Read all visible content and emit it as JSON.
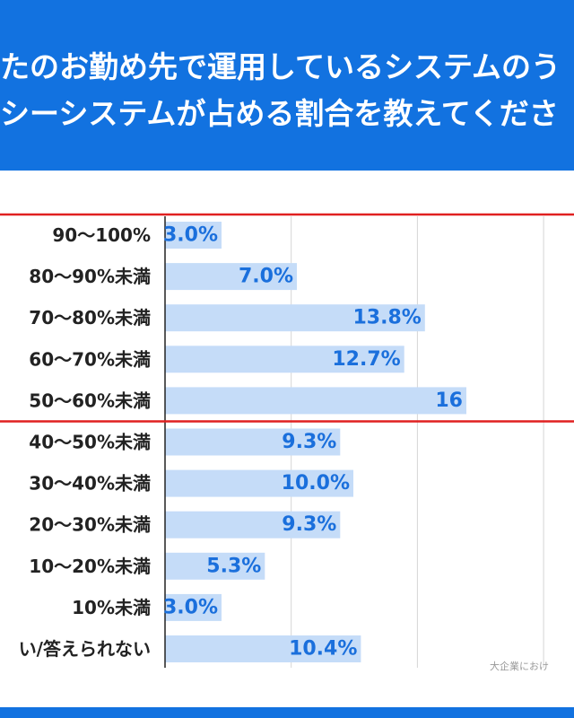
{
  "header": {
    "line1": "たのお勤め先で運用しているシステムのう",
    "line2": "シーシステムが占める割合を教えてくださ"
  },
  "colors": {
    "header_bg": "#1272e0",
    "bar_fill": "#c5dcf8",
    "value_text": "#1a6fdc",
    "highlight": "#e02020",
    "grid": "#d6d6d6"
  },
  "chart_data": {
    "type": "bar",
    "orientation": "horizontal",
    "categories": [
      "90〜100%",
      "80〜90%未満",
      "70〜80%未満",
      "60〜70%未満",
      "50〜60%未満",
      "40〜50%未満",
      "30〜40%未満",
      "20〜30%未満",
      "10〜20%未満",
      "10%未満",
      "い/答えられない"
    ],
    "values": [
      3.0,
      7.0,
      13.8,
      12.7,
      16,
      9.3,
      10.0,
      9.3,
      5.3,
      3.0,
      10.4
    ],
    "value_labels": [
      "3.0%",
      "7.0%",
      "13.8%",
      "12.7%",
      "16",
      "9.3%",
      "10.0%",
      "9.3%",
      "5.3%",
      "3.0%",
      "10.4%"
    ],
    "highlight_rows": [
      0,
      4
    ],
    "grid": true,
    "note": "大企業におけ"
  }
}
